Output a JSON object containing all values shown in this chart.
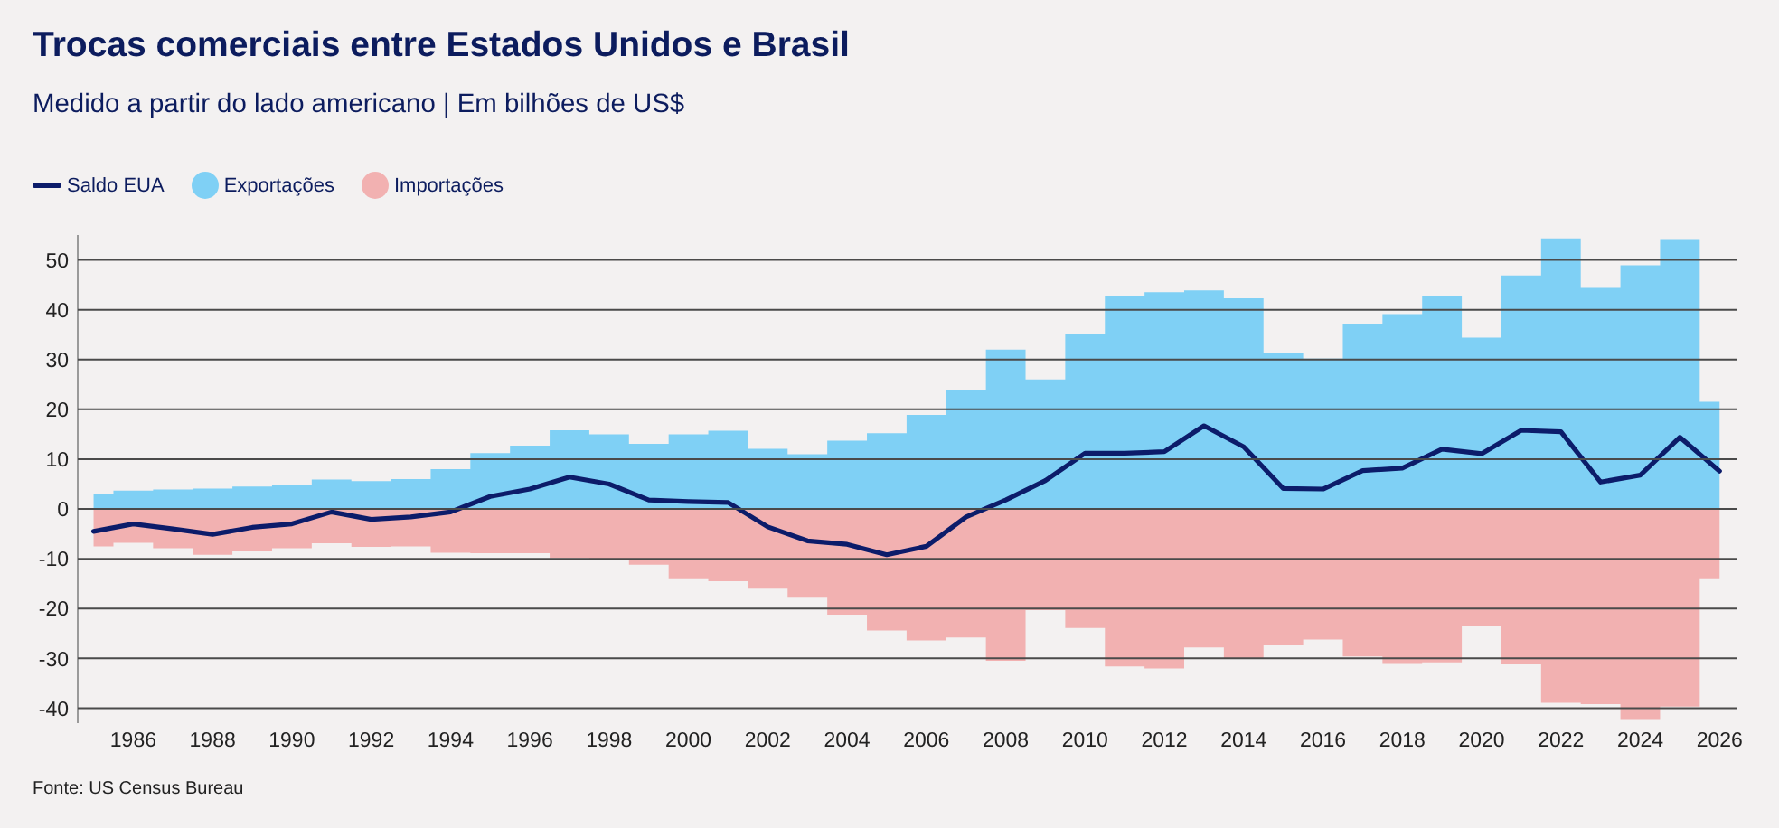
{
  "chart_data": {
    "type": "area",
    "title": "Trocas comerciais entre Estados Unidos e Brasil",
    "subtitle": "Medido a partir do lado americano | Em bilhões de US$",
    "x": [
      1985,
      1986,
      1987,
      1988,
      1989,
      1990,
      1991,
      1992,
      1993,
      1994,
      1995,
      1996,
      1997,
      1998,
      1999,
      2000,
      2001,
      2002,
      2003,
      2004,
      2005,
      2006,
      2007,
      2008,
      2009,
      2010,
      2011,
      2012,
      2013,
      2014,
      2015,
      2016,
      2017,
      2018,
      2019,
      2020,
      2021,
      2022,
      2023,
      2024,
      2025,
      2026
    ],
    "series": [
      {
        "name": "Saldo EUA",
        "type": "line",
        "color": "#0c1c6a",
        "values": [
          -4.5,
          -3.0,
          -4.0,
          -5.1,
          -3.7,
          -3.0,
          -0.6,
          -2.1,
          -1.6,
          -0.6,
          2.5,
          4.0,
          6.4,
          5.0,
          1.8,
          1.5,
          1.3,
          -3.6,
          -6.4,
          -7.1,
          -9.2,
          -7.5,
          -1.6,
          1.8,
          5.7,
          11.2,
          11.2,
          11.5,
          16.7,
          12.5,
          4.1,
          4.0,
          7.7,
          8.2,
          12.0,
          11.1,
          15.8,
          15.5,
          5.4,
          6.8,
          14.4,
          7.6
        ]
      },
      {
        "name": "Exportações",
        "color": "#7fd0f5",
        "values": [
          3.0,
          3.7,
          3.9,
          4.1,
          4.5,
          4.8,
          5.9,
          5.6,
          6.0,
          8.0,
          11.2,
          12.7,
          15.8,
          15.0,
          13.1,
          15.0,
          15.7,
          12.1,
          11.0,
          13.7,
          15.2,
          18.9,
          23.9,
          32.0,
          26.0,
          35.2,
          42.7,
          43.5,
          43.9,
          42.3,
          31.3,
          30.2,
          37.2,
          39.1,
          42.7,
          34.4,
          46.9,
          54.3,
          44.4,
          48.9,
          54.2,
          21.5
        ]
      },
      {
        "name": "Importações",
        "color": "#f2b1b1",
        "values": [
          -7.5,
          -6.8,
          -7.9,
          -9.2,
          -8.5,
          -7.9,
          -6.9,
          -7.6,
          -7.5,
          -8.8,
          -8.9,
          -8.9,
          -9.9,
          -10.1,
          -11.2,
          -13.9,
          -14.5,
          -16.0,
          -17.8,
          -21.2,
          -24.4,
          -26.4,
          -25.8,
          -30.5,
          -20.3,
          -23.9,
          -31.6,
          -32.0,
          -27.8,
          -30.0,
          -27.4,
          -26.2,
          -29.6,
          -31.1,
          -30.8,
          -23.6,
          -31.2,
          -38.9,
          -39.2,
          -42.2,
          -39.7,
          -13.9
        ]
      }
    ],
    "xlim": [
      1984.6,
      2026.45
    ],
    "xticks": [
      1986,
      1988,
      1990,
      1992,
      1994,
      1996,
      1998,
      2000,
      2002,
      2004,
      2006,
      2008,
      2010,
      2012,
      2014,
      2016,
      2018,
      2020,
      2022,
      2024,
      2026
    ],
    "ylim": [
      -43,
      55
    ],
    "yticks": [
      -40,
      -30,
      -20,
      -10,
      0,
      10,
      20,
      30,
      40,
      50
    ],
    "grid": "y",
    "legend": "top left",
    "annotations": [
      "Fonte: US Census Bureau"
    ]
  }
}
